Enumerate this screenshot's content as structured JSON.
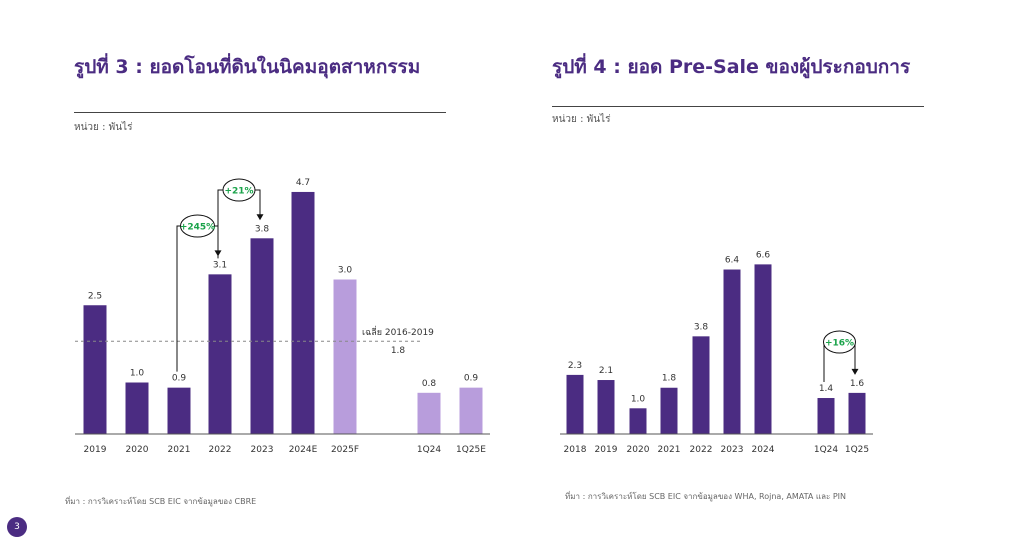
{
  "colors": {
    "dark": "#4b2c82",
    "light": "#b89ddc",
    "accent_green": "#1aa34a",
    "title": "#4b2c82"
  },
  "left": {
    "title": "รูปที่ 3 : ยอดโอนที่ดินในนิคมอุตสาหกรรม",
    "unit": "หน่วย : พันไร่",
    "source": "ที่มา : การวิเคราะห์โดย SCB EIC จากข้อมูลของ CBRE",
    "average_label": "เฉลี่ย 2016-2019",
    "average_value_label": "1.8",
    "annotations": [
      "+245%",
      "+21%"
    ]
  },
  "right": {
    "title": "รูปที่ 4 : ยอด Pre-Sale ของผู้ประกอบการ",
    "unit": "หน่วย : พันไร่",
    "source": "ที่มา : การวิเคราะห์โดย SCB EIC จากข้อมูลของ WHA, Rojna, AMATA และ PIN",
    "annotations": [
      "+16%"
    ]
  },
  "page_number": "3",
  "chart_data": [
    {
      "type": "bar",
      "title": "รูปที่ 3 : ยอดโอนที่ดินในนิคมอุตสาหกรรม",
      "ylabel": "หน่วย : พันไร่",
      "categories": [
        "2019",
        "2020",
        "2021",
        "2022",
        "2023",
        "2024E",
        "2025F",
        "1Q24",
        "1Q25E"
      ],
      "values": [
        2.5,
        1.0,
        0.9,
        3.1,
        3.8,
        4.7,
        3.0,
        0.8,
        0.9
      ],
      "value_labels": [
        "2.5",
        "1.0",
        "0.9",
        "3.1",
        "3.8",
        "4.7",
        "3.0",
        "0.8",
        "0.9"
      ],
      "styles": [
        "actual",
        "actual",
        "actual",
        "actual",
        "actual",
        "actual",
        "forecast",
        "forecast",
        "forecast"
      ],
      "average": 1.8,
      "ylim": [
        0,
        5.2
      ],
      "grid": false
    },
    {
      "type": "bar",
      "title": "รูปที่ 4 : ยอด Pre-Sale ของผู้ประกอบการ",
      "ylabel": "หน่วย : พันไร่",
      "categories": [
        "2018",
        "2019",
        "2020",
        "2021",
        "2022",
        "2023",
        "2024",
        "1Q24",
        "1Q25"
      ],
      "values": [
        2.3,
        2.1,
        1.0,
        1.8,
        3.8,
        6.4,
        6.6,
        1.4,
        1.6
      ],
      "value_labels": [
        "2.3",
        "2.1",
        "1.0",
        "1.8",
        "3.8",
        "6.4",
        "6.6",
        "1.4",
        "1.6"
      ],
      "ylim": [
        0,
        7.2
      ],
      "grid": false
    }
  ]
}
